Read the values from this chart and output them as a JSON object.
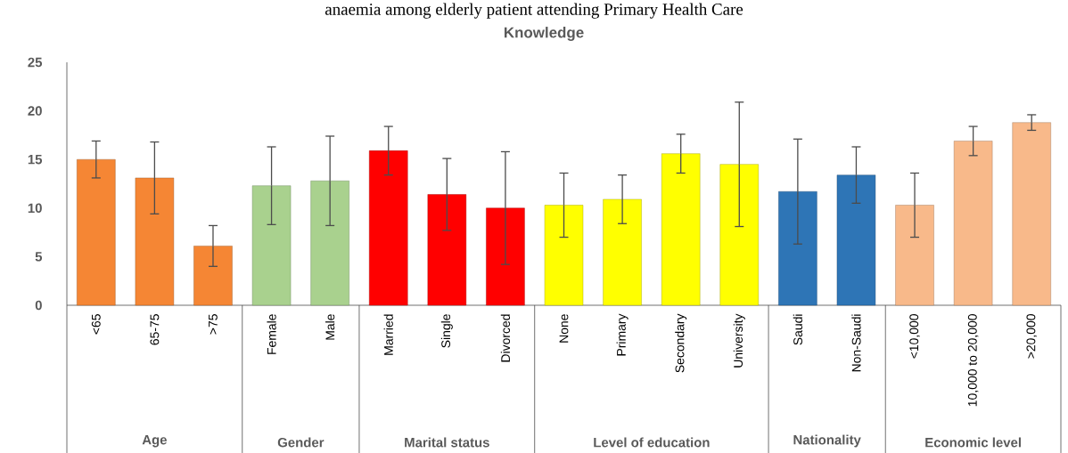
{
  "chart_data": {
    "type": "bar",
    "title": "Knowledge",
    "subtitle": "anaemia among elderly patient attending Primary Health Care",
    "categories": [
      "<65",
      "65-75",
      ">75",
      "Female",
      "Male",
      "Married",
      "Single",
      "Divorced",
      "None",
      "Primary",
      "Secondary",
      "University",
      "Saudi",
      "Non-Saudi",
      "<10,000",
      "10,000 to 20,000",
      ">20,000"
    ],
    "values": [
      15.0,
      13.1,
      6.1,
      12.3,
      12.8,
      15.9,
      11.4,
      10.0,
      10.3,
      10.9,
      15.6,
      14.5,
      11.7,
      13.4,
      10.3,
      16.9,
      18.8
    ],
    "errors": [
      1.9,
      3.7,
      2.1,
      4.0,
      4.6,
      2.5,
      3.7,
      5.8,
      3.3,
      2.5,
      2.0,
      6.4,
      5.4,
      2.9,
      3.3,
      1.5,
      0.8
    ],
    "colors": [
      "#f58634",
      "#f58634",
      "#f58634",
      "#a9d18e",
      "#a9d18e",
      "#ff0000",
      "#ff0000",
      "#ff0000",
      "#ffff00",
      "#ffff00",
      "#ffff00",
      "#ffff00",
      "#2e75b6",
      "#2e75b6",
      "#f8b98a",
      "#f8b98a",
      "#f8b98a"
    ],
    "ylim": [
      0,
      25
    ],
    "yticks": [
      0,
      5,
      10,
      15,
      20,
      25
    ],
    "annotations": [
      "Age",
      "Gender",
      "Marital status",
      "Level of education",
      "Nationality",
      "Economic level"
    ]
  }
}
